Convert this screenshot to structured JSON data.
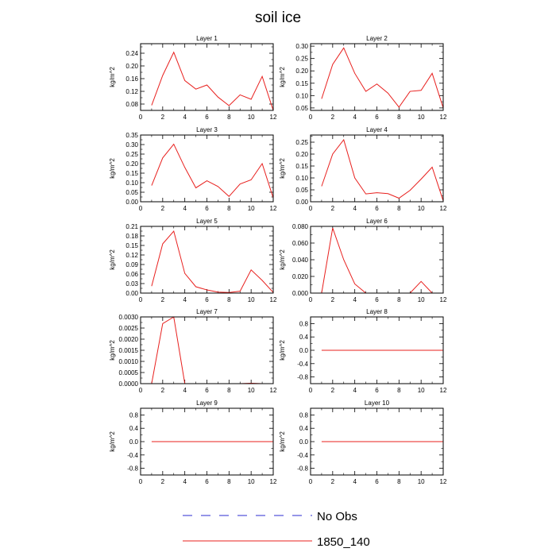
{
  "figure": {
    "title": "soil ice",
    "legend": [
      {
        "label": "No Obs",
        "color": "#2b2bd0",
        "dash": true
      },
      {
        "label": "1850_140",
        "color": "#e8201e",
        "dash": false
      }
    ]
  },
  "chart_data": [
    {
      "type": "line",
      "title": "Layer 1",
      "ylabel": "kg/m^2",
      "xlim": [
        0,
        12
      ],
      "ylim": [
        0.06,
        0.27
      ],
      "xticks": [
        0,
        2,
        4,
        6,
        8,
        10,
        12
      ],
      "yticks": [
        0.08,
        0.12,
        0.16,
        0.2,
        0.24
      ],
      "ydigits": 2,
      "series": [
        {
          "name": "1850_140",
          "color": "#e8201e",
          "x": [
            1,
            2,
            3,
            4,
            5,
            6,
            7,
            8,
            9,
            10,
            11,
            12
          ],
          "values": [
            0.076,
            0.17,
            0.243,
            0.154,
            0.127,
            0.14,
            0.102,
            0.075,
            0.109,
            0.095,
            0.167,
            0.06
          ]
        }
      ]
    },
    {
      "type": "line",
      "title": "Layer 2",
      "ylabel": "kg/m^2",
      "xlim": [
        0,
        12
      ],
      "ylim": [
        0.04,
        0.31
      ],
      "xticks": [
        0,
        2,
        4,
        6,
        8,
        10,
        12
      ],
      "yticks": [
        0.05,
        0.1,
        0.15,
        0.2,
        0.25,
        0.3
      ],
      "ydigits": 2,
      "series": [
        {
          "name": "1850_140",
          "color": "#e8201e",
          "x": [
            1,
            2,
            3,
            4,
            5,
            6,
            7,
            8,
            9,
            10,
            11,
            12
          ],
          "values": [
            0.087,
            0.226,
            0.293,
            0.19,
            0.117,
            0.147,
            0.11,
            0.053,
            0.117,
            0.121,
            0.19,
            0.05
          ]
        }
      ]
    },
    {
      "type": "line",
      "title": "Layer 3",
      "ylabel": "kg/m^2",
      "xlim": [
        0,
        12
      ],
      "ylim": [
        0.0,
        0.35
      ],
      "xticks": [
        0,
        2,
        4,
        6,
        8,
        10,
        12
      ],
      "yticks": [
        0.0,
        0.05,
        0.1,
        0.15,
        0.2,
        0.25,
        0.3,
        0.35
      ],
      "ydigits": 2,
      "series": [
        {
          "name": "1850_140",
          "color": "#e8201e",
          "x": [
            1,
            2,
            3,
            4,
            5,
            6,
            7,
            8,
            9,
            10,
            11,
            12
          ],
          "values": [
            0.085,
            0.23,
            0.302,
            0.18,
            0.073,
            0.11,
            0.08,
            0.028,
            0.093,
            0.115,
            0.2,
            0.02
          ]
        }
      ]
    },
    {
      "type": "line",
      "title": "Layer 4",
      "ylabel": "kg/m^2",
      "xlim": [
        0,
        12
      ],
      "ylim": [
        0.0,
        0.28
      ],
      "xticks": [
        0,
        2,
        4,
        6,
        8,
        10,
        12
      ],
      "yticks": [
        0.0,
        0.05,
        0.1,
        0.15,
        0.2,
        0.25
      ],
      "ydigits": 2,
      "series": [
        {
          "name": "1850_140",
          "color": "#e8201e",
          "x": [
            1,
            2,
            3,
            4,
            5,
            6,
            7,
            8,
            9,
            10,
            11,
            12
          ],
          "values": [
            0.065,
            0.2,
            0.26,
            0.1,
            0.033,
            0.038,
            0.034,
            0.015,
            0.048,
            0.095,
            0.145,
            0.004
          ]
        }
      ]
    },
    {
      "type": "line",
      "title": "Layer 5",
      "ylabel": "kg/m^2",
      "xlim": [
        0,
        12
      ],
      "ylim": [
        0.0,
        0.21
      ],
      "xticks": [
        0,
        2,
        4,
        6,
        8,
        10,
        12
      ],
      "yticks": [
        0.0,
        0.03,
        0.06,
        0.09,
        0.12,
        0.15,
        0.18,
        0.21
      ],
      "ydigits": 2,
      "series": [
        {
          "name": "1850_140",
          "color": "#e8201e",
          "x": [
            1,
            2,
            3,
            4,
            5,
            6,
            7,
            8,
            9,
            10,
            11,
            12
          ],
          "values": [
            0.022,
            0.155,
            0.195,
            0.062,
            0.02,
            0.01,
            0.003,
            0.002,
            0.006,
            0.073,
            0.04,
            0.002
          ]
        }
      ]
    },
    {
      "type": "line",
      "title": "Layer 6",
      "ylabel": "kg/m^2",
      "xlim": [
        0,
        12
      ],
      "ylim": [
        0.0,
        0.08
      ],
      "xticks": [
        0,
        2,
        4,
        6,
        8,
        10,
        12
      ],
      "yticks": [
        0.0,
        0.02,
        0.04,
        0.06,
        0.08
      ],
      "ydigits": 3,
      "series": [
        {
          "name": "1850_140",
          "color": "#e8201e",
          "x": [
            1,
            2,
            3,
            4,
            5,
            6,
            7,
            8,
            9,
            10,
            11,
            12
          ],
          "values": [
            0.0,
            0.078,
            0.04,
            0.011,
            0.0,
            0.0,
            0.0,
            0.0,
            0.0,
            0.014,
            0.0,
            0.0
          ]
        }
      ]
    },
    {
      "type": "line",
      "title": "Layer 7",
      "ylabel": "kg/m^2",
      "xlim": [
        0,
        12
      ],
      "ylim": [
        0.0,
        0.003
      ],
      "xticks": [
        0,
        2,
        4,
        6,
        8,
        10,
        12
      ],
      "yticks": [
        0.0,
        0.0005,
        0.001,
        0.0015,
        0.002,
        0.0025,
        0.003
      ],
      "ydigits": 4,
      "series": [
        {
          "name": "1850_140",
          "color": "#e8201e",
          "x": [
            1,
            2,
            3,
            4,
            5,
            6,
            7,
            8,
            9,
            10,
            11,
            12
          ],
          "values": [
            0.0,
            0.0027,
            0.003,
            0.0,
            0.0,
            0.0,
            0.0,
            0.0,
            0.0,
            2e-05,
            0.0,
            0.0
          ]
        }
      ]
    },
    {
      "type": "line",
      "title": "Layer 8",
      "ylabel": "kg/m^2",
      "xlim": [
        0,
        12
      ],
      "ylim": [
        -1.0,
        1.0
      ],
      "xticks": [
        0,
        2,
        4,
        6,
        8,
        10,
        12
      ],
      "yticks": [
        -0.8,
        -0.4,
        0.0,
        0.4,
        0.8
      ],
      "ydigits": 1,
      "series": [
        {
          "name": "1850_140",
          "color": "#e8201e",
          "x": [
            1,
            2,
            3,
            4,
            5,
            6,
            7,
            8,
            9,
            10,
            11,
            12
          ],
          "values": [
            0,
            0,
            0,
            0,
            0,
            0,
            0,
            0,
            0,
            0,
            0,
            0
          ]
        }
      ]
    },
    {
      "type": "line",
      "title": "Layer 9",
      "ylabel": "kg/m^2",
      "xlim": [
        0,
        12
      ],
      "ylim": [
        -1.0,
        1.0
      ],
      "xticks": [
        0,
        2,
        4,
        6,
        8,
        10,
        12
      ],
      "yticks": [
        -0.8,
        -0.4,
        0.0,
        0.4,
        0.8
      ],
      "ydigits": 1,
      "series": [
        {
          "name": "1850_140",
          "color": "#e8201e",
          "x": [
            1,
            2,
            3,
            4,
            5,
            6,
            7,
            8,
            9,
            10,
            11,
            12
          ],
          "values": [
            0,
            0,
            0,
            0,
            0,
            0,
            0,
            0,
            0,
            0,
            0,
            0
          ]
        }
      ]
    },
    {
      "type": "line",
      "title": "Layer 10",
      "ylabel": "kg/m^2",
      "xlim": [
        0,
        12
      ],
      "ylim": [
        -1.0,
        1.0
      ],
      "xticks": [
        0,
        2,
        4,
        6,
        8,
        10,
        12
      ],
      "yticks": [
        -0.8,
        -0.4,
        0.0,
        0.4,
        0.8
      ],
      "ydigits": 1,
      "series": [
        {
          "name": "1850_140",
          "color": "#e8201e",
          "x": [
            1,
            2,
            3,
            4,
            5,
            6,
            7,
            8,
            9,
            10,
            11,
            12
          ],
          "values": [
            0,
            0,
            0,
            0,
            0,
            0,
            0,
            0,
            0,
            0,
            0,
            0
          ]
        }
      ]
    }
  ]
}
